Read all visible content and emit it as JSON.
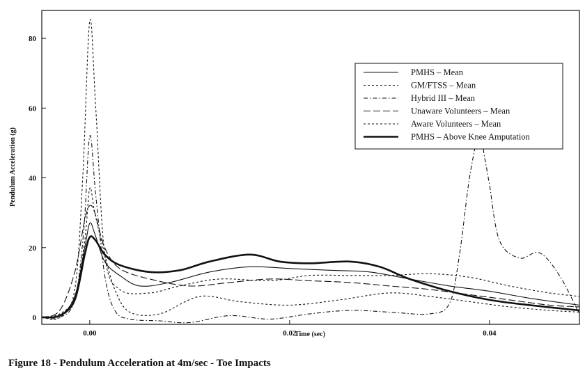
{
  "caption": "Figure 18 - Pendulum Acceleration at 4m/sec - Toe Impacts",
  "chart_data": {
    "type": "line",
    "title": "",
    "xlabel": "Time (sec)",
    "ylabel": "Pendulum Acceleration (g)",
    "xlim": [
      -0.0048,
      0.049
    ],
    "ylim": [
      -2,
      88
    ],
    "xticks": [
      0.0,
      0.02,
      0.04
    ],
    "xtick_labels": [
      "0.00",
      "0.02",
      "0.04"
    ],
    "yticks": [
      0,
      20,
      40,
      60,
      80
    ],
    "ytick_labels": [
      "0",
      "20",
      "40",
      "60",
      "80"
    ],
    "grid": false,
    "legend_position": "top-right",
    "series": [
      {
        "name": "PMHS – Mean",
        "style": "solid",
        "x": [
          -0.0048,
          -0.003,
          -0.0015,
          -0.0005,
          0.0,
          0.0005,
          0.0015,
          0.003,
          0.005,
          0.008,
          0.012,
          0.016,
          0.02,
          0.024,
          0.028,
          0.032,
          0.036,
          0.04,
          0.044,
          0.049
        ],
        "y": [
          0,
          0.5,
          6,
          20,
          27,
          24,
          16,
          12,
          9,
          10,
          13,
          14.5,
          14,
          13.5,
          13,
          11,
          9,
          7.5,
          5.5,
          3.5
        ]
      },
      {
        "name": "GM/FTSS – Mean",
        "style": "short-dash",
        "x": [
          -0.0048,
          -0.003,
          -0.0015,
          -0.0007,
          0.0,
          0.0006,
          0.0015,
          0.003,
          0.006,
          0.009,
          0.013,
          0.018,
          0.022,
          0.026,
          0.03,
          0.034,
          0.038,
          0.042,
          0.046,
          0.049
        ],
        "y": [
          0,
          0,
          8,
          40,
          85,
          60,
          18,
          8,
          7,
          9,
          11,
          10.5,
          12,
          12,
          12,
          12.5,
          11.5,
          9,
          7,
          6
        ]
      },
      {
        "name": "Hybrid III – Mean",
        "style": "dash-dot",
        "x": [
          -0.0048,
          -0.003,
          -0.0015,
          -0.0006,
          0.0,
          0.0006,
          0.0015,
          0.0025,
          0.004,
          0.007,
          0.01,
          0.014,
          0.018,
          0.022,
          0.026,
          0.03,
          0.034,
          0.036,
          0.037,
          0.038,
          0.039,
          0.0395,
          0.04,
          0.041,
          0.043,
          0.045,
          0.047,
          0.049
        ],
        "y": [
          0,
          0,
          5,
          25,
          52,
          35,
          12,
          2,
          -0.5,
          -1,
          -1.5,
          0.5,
          -0.5,
          1,
          2,
          1.5,
          1,
          4,
          18,
          40,
          53,
          46,
          38,
          22,
          17,
          18.5,
          12,
          1
        ]
      },
      {
        "name": "Unaware Volunteers – Mean",
        "style": "long-dash",
        "x": [
          -0.0048,
          -0.003,
          -0.0015,
          -0.0005,
          0.0,
          0.0005,
          0.0015,
          0.003,
          0.006,
          0.01,
          0.014,
          0.018,
          0.022,
          0.026,
          0.03,
          0.034,
          0.038,
          0.042,
          0.046,
          0.049
        ],
        "y": [
          0,
          2,
          13,
          28,
          32,
          30,
          20,
          14,
          11,
          9,
          10,
          11,
          10.5,
          10,
          9,
          8,
          6.5,
          5,
          3.5,
          3
        ]
      },
      {
        "name": "Aware Volunteers – Mean",
        "style": "short-dash",
        "x": [
          -0.0048,
          -0.003,
          -0.0015,
          -0.0005,
          0.0,
          0.0005,
          0.0015,
          0.0025,
          0.004,
          0.007,
          0.011,
          0.015,
          0.02,
          0.025,
          0.03,
          0.034,
          0.038,
          0.042,
          0.046,
          0.049
        ],
        "y": [
          0,
          1,
          6,
          22,
          37,
          30,
          18,
          8,
          1.5,
          1,
          6,
          4.5,
          3.5,
          5,
          7,
          6,
          4.5,
          3,
          2,
          1.5
        ]
      },
      {
        "name": "PMHS – Above Knee Amputation",
        "style": "thick-solid",
        "x": [
          -0.0048,
          -0.003,
          -0.0015,
          -0.0005,
          0.0,
          0.0006,
          0.0015,
          0.003,
          0.006,
          0.009,
          0.012,
          0.016,
          0.019,
          0.022,
          0.026,
          0.029,
          0.032,
          0.036,
          0.04,
          0.044,
          0.049
        ],
        "y": [
          0,
          0.5,
          5,
          18,
          23,
          22,
          18,
          15,
          13,
          13.5,
          16,
          18,
          16,
          15.5,
          16,
          14.5,
          11,
          7.5,
          5,
          3.5,
          2
        ]
      }
    ]
  }
}
